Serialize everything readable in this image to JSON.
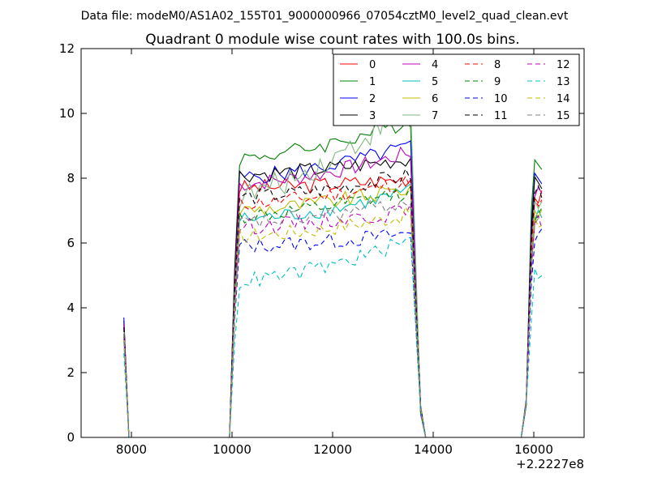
{
  "chart_data": {
    "type": "line",
    "suptitle": "Data file: modeM0/AS1A02_155T01_9000000966_07054cztM0_level2_quad_clean.evt",
    "title": "Quadrant 0 module wise count rates with 100.0s bins.",
    "xlabel": "",
    "ylabel": "",
    "x_offset_label": "+2.2227e8",
    "xlim": [
      7000,
      17000
    ],
    "ylim": [
      0,
      12
    ],
    "xticks": [
      8000,
      10000,
      12000,
      14000,
      16000
    ],
    "yticks": [
      0,
      2,
      4,
      6,
      8,
      10,
      12
    ],
    "grid": false,
    "legend_position": "top-right",
    "legend_columns": 4,
    "segments": [
      {
        "start": 7850,
        "values": [
          3.7,
          0
        ]
      },
      {
        "start": 8050,
        "values": [
          0,
          0,
          0,
          0,
          0,
          0,
          0,
          0,
          0,
          0,
          0,
          0,
          0,
          0,
          0,
          0,
          0,
          0,
          0,
          0
        ]
      },
      {
        "start": 10050,
        "values": [
          null,
          null,
          null,
          null,
          null,
          null,
          null,
          null,
          null,
          null,
          null,
          null,
          null,
          null,
          null,
          null,
          null,
          null,
          null,
          null,
          null,
          null,
          null,
          null,
          null,
          null,
          null,
          null,
          null,
          null,
          null,
          null,
          null,
          null,
          null,
          null
        ]
      },
      {
        "start": 13650,
        "values": [
          null,
          0.8,
          0
        ]
      },
      {
        "start": 13950,
        "values": [
          0,
          0,
          0,
          0,
          0,
          0,
          0,
          0,
          0,
          0,
          0,
          0,
          0,
          0,
          0,
          0,
          0,
          0,
          0
        ]
      },
      {
        "start": 15850,
        "values": [
          1.0,
          null,
          null,
          null,
          null
        ]
      }
    ],
    "series": [
      {
        "name": "0",
        "color": "#ff0000",
        "style": "solid",
        "plateau_start": 7.7,
        "plateau_end": 8.0,
        "late_level": 7.4,
        "spike": 3.6
      },
      {
        "name": "1",
        "color": "#008000",
        "style": "solid",
        "plateau_start": 8.6,
        "plateau_end": 9.8,
        "late_level": 8.5,
        "spike": 3.6
      },
      {
        "name": "2",
        "color": "#0000ff",
        "style": "solid",
        "plateau_start": 8.0,
        "plateau_end": 9.0,
        "late_level": 8.0,
        "spike": 3.7
      },
      {
        "name": "3",
        "color": "#000000",
        "style": "solid",
        "plateau_start": 8.1,
        "plateau_end": 8.6,
        "late_level": 7.8,
        "spike": 3.5
      },
      {
        "name": "4",
        "color": "#bf00bf",
        "style": "solid",
        "plateau_start": 7.8,
        "plateau_end": 8.8,
        "late_level": 7.6,
        "spike": 3.5
      },
      {
        "name": "5",
        "color": "#00bfbf",
        "style": "solid",
        "plateau_start": 6.7,
        "plateau_end": 7.6,
        "late_level": 6.8,
        "spike": 3.2
      },
      {
        "name": "6",
        "color": "#bfbf00",
        "style": "solid",
        "plateau_start": 7.0,
        "plateau_end": 7.7,
        "late_level": 7.0,
        "spike": 3.3
      },
      {
        "name": "7",
        "color": "#80b880",
        "style": "solid",
        "plateau_start": 7.4,
        "plateau_end": 10.4,
        "late_level": 7.2,
        "spike": 3.4
      },
      {
        "name": "8",
        "color": "#ff0000",
        "style": "dashed",
        "plateau_start": 7.2,
        "plateau_end": 7.9,
        "late_level": 7.2,
        "spike": 3.4
      },
      {
        "name": "9",
        "color": "#008000",
        "style": "dashed",
        "plateau_start": 6.8,
        "plateau_end": 7.6,
        "late_level": 6.9,
        "spike": 3.2
      },
      {
        "name": "10",
        "color": "#0000ff",
        "style": "dashed",
        "plateau_start": 5.9,
        "plateau_end": 6.3,
        "late_level": 6.2,
        "spike": 3.0
      },
      {
        "name": "11",
        "color": "#000000",
        "style": "dashed",
        "plateau_start": 7.4,
        "plateau_end": 8.1,
        "late_level": 7.6,
        "spike": 3.4
      },
      {
        "name": "12",
        "color": "#bf00bf",
        "style": "dashed",
        "plateau_start": 6.5,
        "plateau_end": 7.0,
        "late_level": 6.6,
        "spike": 3.1
      },
      {
        "name": "13",
        "color": "#00bfbf",
        "style": "dashed",
        "plateau_start": 4.8,
        "plateau_end": 6.1,
        "late_level": 5.1,
        "spike": 2.6
      },
      {
        "name": "14",
        "color": "#bfbf00",
        "style": "dashed",
        "plateau_start": 6.2,
        "plateau_end": 6.9,
        "late_level": 6.6,
        "spike": 3.0
      },
      {
        "name": "15",
        "color": "#808080",
        "style": "dashed",
        "plateau_start": 6.6,
        "plateau_end": 7.3,
        "late_level": 6.8,
        "spike": 3.2
      }
    ]
  }
}
